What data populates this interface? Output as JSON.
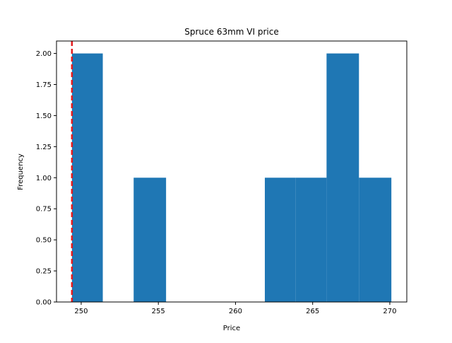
{
  "chart_data": {
    "type": "bar",
    "title": "Spruce 63mm VI price",
    "xlabel": "Price",
    "ylabel": "Frequency",
    "xlim": [
      248.4,
      271.1
    ],
    "ylim": [
      0,
      2.1
    ],
    "bins": [
      {
        "x0": 249.4,
        "x1": 251.4,
        "count": 2
      },
      {
        "x0": 251.4,
        "x1": 253.4,
        "count": 0
      },
      {
        "x0": 253.4,
        "x1": 255.5,
        "count": 1
      },
      {
        "x0": 255.5,
        "x1": 257.5,
        "count": 0
      },
      {
        "x0": 257.5,
        "x1": 259.6,
        "count": 0
      },
      {
        "x0": 259.6,
        "x1": 261.9,
        "count": 0
      },
      {
        "x0": 261.9,
        "x1": 263.9,
        "count": 1
      },
      {
        "x0": 263.9,
        "x1": 265.9,
        "count": 1
      },
      {
        "x0": 265.9,
        "x1": 268.0,
        "count": 2
      },
      {
        "x0": 268.0,
        "x1": 270.1,
        "count": 1
      }
    ],
    "x_ticks": [
      250,
      255,
      260,
      265,
      270
    ],
    "y_ticks": [
      "0.00",
      "0.25",
      "0.50",
      "0.75",
      "1.00",
      "1.25",
      "1.50",
      "1.75",
      "2.00"
    ],
    "reference_line": {
      "x": 249.4,
      "style": "dashed",
      "color": "#e41a1c"
    },
    "bar_color": "#1f77b4",
    "grid": false,
    "legend": "none"
  }
}
